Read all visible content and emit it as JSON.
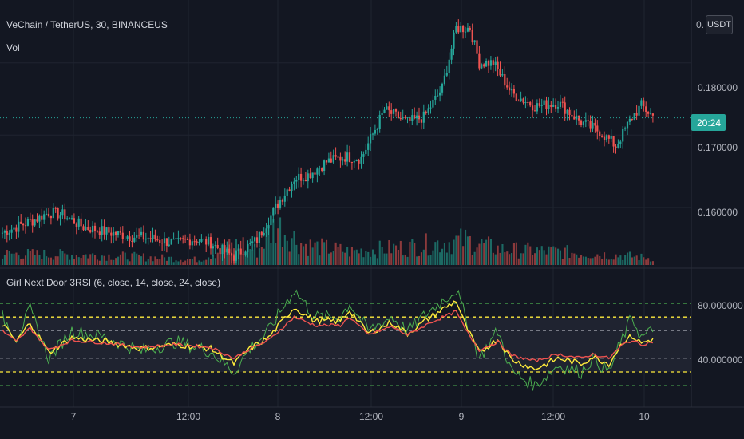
{
  "colors": {
    "background": "#131722",
    "grid": "#1f2430",
    "up": "#26a69a",
    "down": "#ef5350",
    "vol_up": "#1c6a64",
    "vol_down": "#8c3a3c",
    "price_line": "#26a69a",
    "rsi_fast": "#4caf50",
    "rsi_mid": "#ffeb3b",
    "rsi_slow": "#ef5350",
    "band_fill": "#1f2330",
    "level_yellow": "#ffeb3b",
    "level_green": "#4caf50",
    "level_grey": "#787b86"
  },
  "header": {
    "symbol_line": "VeChain / TetherUS, 30, BINANCEUS",
    "volume_label": "Vol",
    "currency_button": "USDT",
    "top_truncated_label": "0."
  },
  "price_axis": {
    "labels": [
      "0.180000",
      "0.170000",
      "0.160000"
    ],
    "current_price_time_label": "20:24"
  },
  "indicator": {
    "title": "Girl Next Door 3RSI (6, close, 14, close, 24, close)",
    "axis_labels": [
      "80.000000",
      "40.000000"
    ]
  },
  "time_axis": {
    "labels": [
      "7",
      "12:00",
      "8",
      "12:00",
      "9",
      "12:00",
      "10"
    ]
  },
  "chart_data": [
    {
      "type": "candlestick",
      "title": "VeChain / TetherUS, 30, BINANCEUS",
      "x_unit": "30-minute bars",
      "yticks": [
        0.16,
        0.17,
        0.18
      ],
      "ylim": [
        0.1517,
        0.1887
      ],
      "current_price": 0.1724,
      "anchors": [
        [
          0,
          0.1565
        ],
        [
          10,
          0.1578
        ],
        [
          14,
          0.1583
        ],
        [
          20,
          0.1593
        ],
        [
          26,
          0.159
        ],
        [
          35,
          0.1573
        ],
        [
          45,
          0.1566
        ],
        [
          55,
          0.156
        ],
        [
          65,
          0.1557
        ],
        [
          75,
          0.155
        ],
        [
          82,
          0.1556
        ],
        [
          90,
          0.1551
        ],
        [
          95,
          0.154
        ],
        [
          100,
          0.1532
        ],
        [
          110,
          0.1555
        ],
        [
          118,
          0.16
        ],
        [
          126,
          0.164
        ],
        [
          132,
          0.1645
        ],
        [
          140,
          0.1663
        ],
        [
          148,
          0.167
        ],
        [
          155,
          0.1668
        ],
        [
          165,
          0.1735
        ],
        [
          175,
          0.1718
        ],
        [
          182,
          0.1725
        ],
        [
          190,
          0.1765
        ],
        [
          196,
          0.1848
        ],
        [
          202,
          0.1848
        ],
        [
          206,
          0.18
        ],
        [
          212,
          0.18
        ],
        [
          220,
          0.1758
        ],
        [
          230,
          0.174
        ],
        [
          240,
          0.1745
        ],
        [
          250,
          0.1718
        ],
        [
          258,
          0.1705
        ],
        [
          265,
          0.1685
        ],
        [
          272,
          0.1725
        ],
        [
          276,
          0.1741
        ],
        [
          281,
          0.1726
        ]
      ]
    },
    {
      "type": "bar",
      "title": "Vol",
      "relative_scale": "0 to 1",
      "profile": [
        [
          0,
          0.25
        ],
        [
          40,
          0.22
        ],
        [
          60,
          0.18
        ],
        [
          85,
          0.12
        ],
        [
          95,
          0.35
        ],
        [
          103,
          0.5
        ],
        [
          110,
          0.3
        ],
        [
          118,
          0.9
        ],
        [
          130,
          0.45
        ],
        [
          150,
          0.3
        ],
        [
          175,
          0.4
        ],
        [
          190,
          0.5
        ],
        [
          200,
          0.55
        ],
        [
          215,
          0.35
        ],
        [
          240,
          0.3
        ],
        [
          255,
          0.25
        ],
        [
          270,
          0.2
        ],
        [
          281,
          0.15
        ]
      ]
    },
    {
      "type": "line",
      "title": "Girl Next Door 3RSI (6, close, 14, close, 24, close)",
      "ylim": [
        5,
        105
      ],
      "yticks": [
        40,
        80
      ],
      "levels": {
        "upper_outer": 80,
        "upper_inner": 70,
        "mid_upper": 60,
        "mid_lower": 40,
        "lower_inner": 30,
        "lower_outer": 20
      },
      "series": [
        {
          "period": 6,
          "x": [
            0,
            6,
            12,
            20,
            30,
            45,
            60,
            75,
            90,
            100,
            106,
            115,
            126,
            135,
            146,
            150,
            158,
            168,
            175,
            185,
            196,
            200,
            206,
            214,
            220,
            230,
            240,
            250,
            255,
            262,
            268,
            272,
            276,
            281
          ],
          "y": [
            70,
            55,
            75,
            40,
            60,
            55,
            45,
            52,
            45,
            30,
            45,
            60,
            90,
            70,
            70,
            80,
            60,
            70,
            60,
            75,
            90,
            70,
            40,
            60,
            30,
            20,
            35,
            30,
            40,
            30,
            55,
            70,
            55,
            60
          ]
        },
        {
          "period": 14,
          "x": [
            0,
            6,
            12,
            20,
            30,
            45,
            60,
            75,
            90,
            100,
            106,
            115,
            126,
            135,
            146,
            150,
            158,
            168,
            175,
            185,
            196,
            200,
            206,
            214,
            220,
            230,
            240,
            250,
            255,
            262,
            268,
            272,
            276,
            281
          ],
          "y": [
            65,
            52,
            66,
            44,
            55,
            52,
            47,
            50,
            47,
            36,
            46,
            55,
            77,
            67,
            67,
            75,
            58,
            66,
            58,
            70,
            82,
            64,
            44,
            54,
            39,
            32,
            40,
            36,
            41,
            36,
            52,
            56,
            51,
            54
          ]
        },
        {
          "period": 24,
          "x": [
            0,
            6,
            12,
            20,
            30,
            45,
            60,
            75,
            90,
            100,
            106,
            115,
            126,
            135,
            146,
            150,
            158,
            168,
            175,
            185,
            196,
            200,
            206,
            214,
            220,
            230,
            240,
            250,
            255,
            262,
            268,
            272,
            276,
            281
          ],
          "y": [
            60,
            52,
            62,
            46,
            53,
            51,
            48,
            50,
            48,
            40,
            46,
            53,
            70,
            64,
            64,
            70,
            57,
            63,
            57,
            66,
            74,
            61,
            46,
            52,
            42,
            38,
            43,
            40,
            43,
            40,
            50,
            53,
            50,
            52
          ]
        }
      ]
    }
  ]
}
